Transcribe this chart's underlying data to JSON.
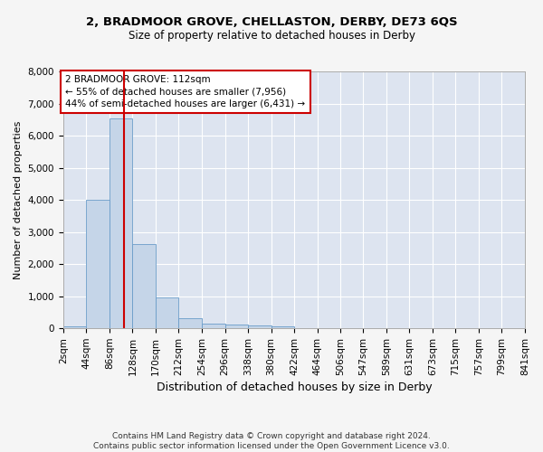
{
  "title_line1": "2, BRADMOOR GROVE, CHELLASTON, DERBY, DE73 6QS",
  "title_line2": "Size of property relative to detached houses in Derby",
  "xlabel": "Distribution of detached houses by size in Derby",
  "ylabel": "Number of detached properties",
  "bar_color": "#c5d5e8",
  "bar_edge_color": "#6a9cc9",
  "annotation_box_text": "2 BRADMOOR GROVE: 112sqm\n← 55% of detached houses are smaller (7,956)\n44% of semi-detached houses are larger (6,431) →",
  "annotation_box_color": "#ffffff",
  "annotation_box_edge_color": "#cc0000",
  "vline_x": 112,
  "vline_color": "#cc0000",
  "bin_edges": [
    2,
    44,
    86,
    128,
    170,
    212,
    254,
    296,
    338,
    380,
    422,
    464,
    506,
    547,
    589,
    631,
    673,
    715,
    757,
    799,
    841
  ],
  "bar_heights": [
    70,
    4000,
    6530,
    2620,
    950,
    310,
    135,
    110,
    90,
    60,
    0,
    0,
    0,
    0,
    0,
    0,
    0,
    0,
    0,
    0
  ],
  "ylim": [
    0,
    8000
  ],
  "yticks": [
    0,
    1000,
    2000,
    3000,
    4000,
    5000,
    6000,
    7000,
    8000
  ],
  "background_color": "#dde4f0",
  "grid_color": "#ffffff",
  "fig_background": "#f5f5f5",
  "footnote": "Contains HM Land Registry data © Crown copyright and database right 2024.\nContains public sector information licensed under the Open Government Licence v3.0.",
  "title1_fontsize": 9.5,
  "title2_fontsize": 8.5,
  "tick_fontsize": 7.5,
  "ylabel_fontsize": 8,
  "xlabel_fontsize": 9,
  "annotation_fontsize": 7.5,
  "footnote_fontsize": 6.5
}
